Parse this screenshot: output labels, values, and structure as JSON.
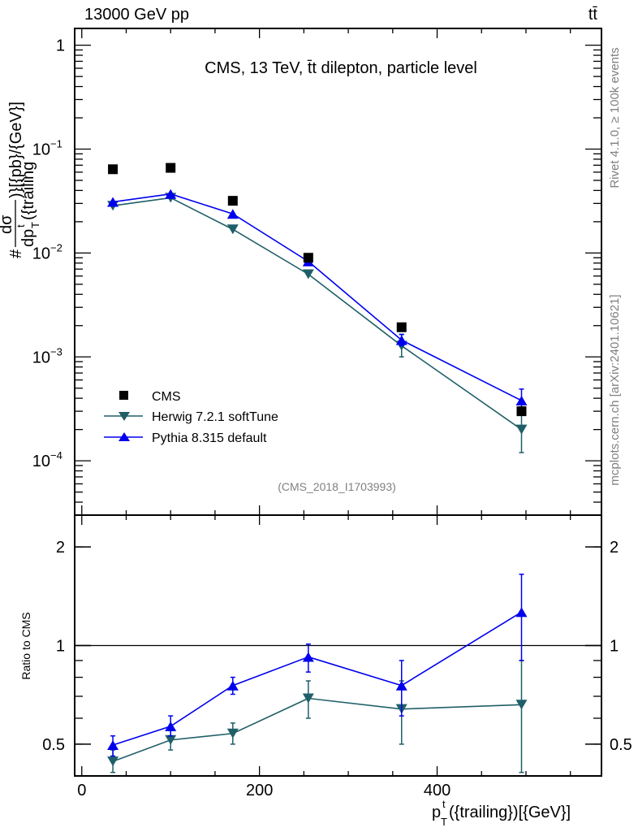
{
  "chart_data": [
    {
      "type": "line",
      "panel": "main",
      "title": "CMS, 13 TeV, t̄t dilepton, particle level",
      "header_left": "13000 GeV pp",
      "header_right": "tt̄",
      "analysis_tag": "(CMS_2018_I1703993)",
      "ylabel": {
        "prefix": "#",
        "numerator": "dσ",
        "denominator": "dp",
        "sup": "t",
        "sub": "T",
        "denominator_rest": "({trailing",
        "suffix": ")}[{pb}/{GeV}]"
      },
      "yscale": "log",
      "ylim": [
        3e-05,
        1.45
      ],
      "xlim": [
        -8,
        585
      ],
      "yticks": [
        {
          "v": 1,
          "label": "1"
        },
        {
          "v": 0.1,
          "label": "10",
          "exp": "−1"
        },
        {
          "v": 0.01,
          "label": "10",
          "exp": "−2"
        },
        {
          "v": 0.001,
          "label": "10",
          "exp": "−3"
        },
        {
          "v": 0.0001,
          "label": "10",
          "exp": "−4"
        }
      ],
      "x": [
        35,
        100,
        170,
        255,
        360,
        495
      ],
      "series": [
        {
          "name": "CMS",
          "marker": "square",
          "color": "#000000",
          "values": [
            0.064,
            0.066,
            0.0318,
            0.009,
            0.00193,
            0.0003
          ]
        },
        {
          "name": "Herwig 7.2.1 softTune",
          "marker": "triangle-down",
          "color": "#1f5f68",
          "values": [
            0.0285,
            0.034,
            0.0169,
            0.00625,
            0.00128,
            0.0002
          ],
          "err_lo": [
            null,
            null,
            null,
            null,
            0.001,
            0.00012
          ],
          "err_hi": [
            null,
            null,
            null,
            null,
            0.00164,
            0.00033
          ]
        },
        {
          "name": "Pythia 8.315 default",
          "marker": "triangle-up",
          "color": "#0000ee",
          "values": [
            0.031,
            0.037,
            0.0238,
            0.0083,
            0.00145,
            0.00038
          ],
          "err_lo": [
            null,
            null,
            null,
            null,
            0.00128,
            0.00029
          ],
          "err_hi": [
            null,
            null,
            null,
            null,
            0.00165,
            0.00049
          ]
        }
      ],
      "legend": {
        "placement": "bottom-left"
      }
    },
    {
      "type": "line",
      "panel": "ratio",
      "ylabel": "Ratio to CMS",
      "xlabel": {
        "main": "p",
        "sup": "t",
        "sub": "T",
        "rest": "({trailing})[{GeV}]"
      },
      "yscale": "log",
      "ylim": [
        0.4,
        2.5
      ],
      "xlim": [
        -8,
        585
      ],
      "yticks": [
        {
          "v": 0.5,
          "label": "0.5"
        },
        {
          "v": 1,
          "label": "1"
        },
        {
          "v": 2,
          "label": "2"
        }
      ],
      "xticks": [
        {
          "v": 0,
          "label": "0"
        },
        {
          "v": 200,
          "label": "200"
        },
        {
          "v": 400,
          "label": "400"
        }
      ],
      "reference_line": 1,
      "x": [
        35,
        100,
        170,
        255,
        360,
        495
      ],
      "series": [
        {
          "name": "Herwig 7.2.1 softTune",
          "color": "#1f5f68",
          "marker": "triangle-down",
          "values": [
            0.443,
            0.515,
            0.539,
            0.69,
            0.64,
            0.66
          ],
          "err_lo": [
            0.41,
            0.48,
            0.5,
            0.6,
            0.5,
            0.41
          ],
          "err_hi": [
            0.48,
            0.55,
            0.58,
            0.78,
            0.78,
            0.9
          ]
        },
        {
          "name": "Pythia 8.315 default",
          "color": "#0000ee",
          "marker": "triangle-up",
          "values": [
            0.497,
            0.567,
            0.755,
            0.923,
            0.755,
            1.265
          ],
          "err_lo": [
            0.46,
            0.53,
            0.71,
            0.83,
            0.61,
            0.9
          ],
          "err_hi": [
            0.53,
            0.61,
            0.8,
            1.01,
            0.9,
            1.65
          ]
        }
      ]
    }
  ],
  "side_labels": {
    "rivet": "Rivet 4.1.0, ≥ 100k events",
    "mcplots": "mcplots.cern.ch [arXiv:2401.10621]"
  }
}
